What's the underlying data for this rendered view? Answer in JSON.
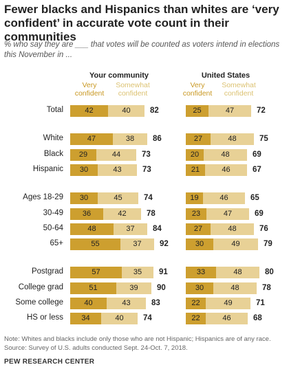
{
  "title": "Fewer blacks and Hispanics than whites are ‘very confident’ in accurate vote count in their communities",
  "subtitle": "% who say they are ___ that votes will be counted as voters intend in elections this November in ...",
  "panels": [
    {
      "title": "Your community",
      "legend_very": "Very\nconfident",
      "legend_somewhat": "Somewhat\nconfident"
    },
    {
      "title": "United States",
      "legend_very": "Very\nconfident",
      "legend_somewhat": "Somewhat\nconfident"
    }
  ],
  "colors": {
    "very_confident": "#cd9f2f",
    "somewhat_confident": "#e8d196"
  },
  "chart_data": {
    "type": "bar",
    "subtype": "stacked-horizontal",
    "categories": [
      "Total",
      "White",
      "Black",
      "Hispanic",
      "Ages 18-29",
      "30-49",
      "50-64",
      "65+",
      "Postgrad",
      "College grad",
      "Some college",
      "HS or less"
    ],
    "groups": [
      [
        0
      ],
      [
        1,
        2,
        3
      ],
      [
        4,
        5,
        6,
        7
      ],
      [
        8,
        9,
        10,
        11
      ]
    ],
    "panels": [
      {
        "title": "Your community",
        "series": [
          {
            "name": "Very confident",
            "values": [
              42,
              47,
              29,
              30,
              30,
              36,
              48,
              55,
              57,
              51,
              40,
              34
            ]
          },
          {
            "name": "Somewhat confident",
            "values": [
              40,
              38,
              44,
              43,
              45,
              42,
              37,
              37,
              35,
              39,
              43,
              40
            ]
          }
        ],
        "totals": [
          82,
          86,
          73,
          73,
          74,
          78,
          84,
          92,
          91,
          90,
          83,
          74
        ]
      },
      {
        "title": "United States",
        "series": [
          {
            "name": "Very confident",
            "values": [
              25,
              27,
              20,
              21,
              19,
              23,
              27,
              30,
              33,
              30,
              22,
              22
            ]
          },
          {
            "name": "Somewhat confident",
            "values": [
              47,
              48,
              48,
              46,
              46,
              47,
              48,
              49,
              48,
              48,
              49,
              46
            ]
          }
        ],
        "totals": [
          72,
          75,
          69,
          67,
          65,
          69,
          76,
          79,
          80,
          78,
          71,
          68
        ]
      }
    ]
  },
  "note": "Note: Whites and blacks include only those who are not Hispanic; Hispanics are of any race.",
  "source": "Source: Survey of U.S. adults conducted Sept. 24-Oct. 7, 2018.",
  "brand": "PEW RESEARCH CENTER"
}
